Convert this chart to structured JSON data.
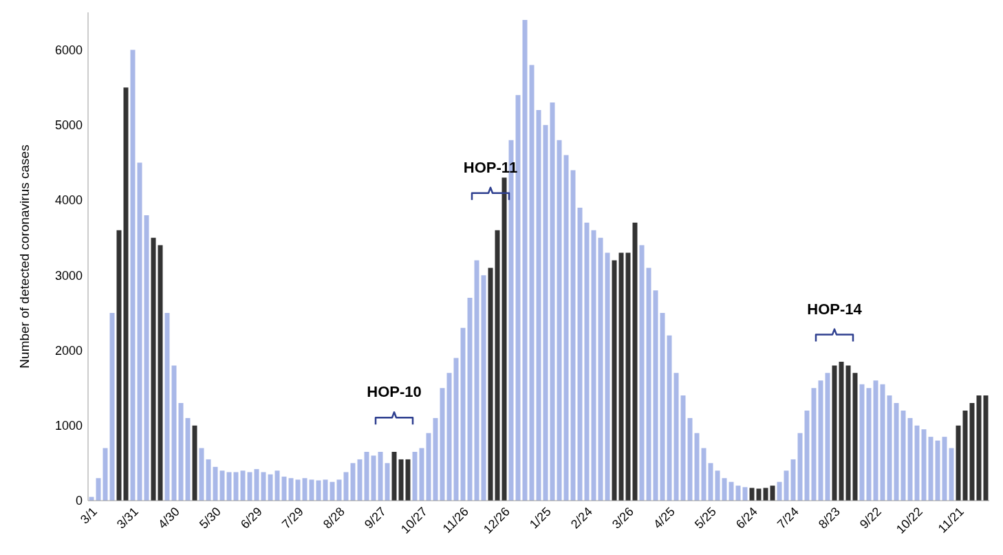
{
  "chart_data": {
    "type": "bar",
    "ylabel": "Number of detected coronavirus cases",
    "categories": [
      "3/1",
      null,
      null,
      null,
      null,
      null,
      "3/31",
      null,
      null,
      null,
      null,
      null,
      "4/30",
      null,
      null,
      null,
      null,
      null,
      "5/30",
      null,
      null,
      null,
      null,
      null,
      "6/29",
      null,
      null,
      null,
      null,
      null,
      "7/29",
      null,
      null,
      null,
      null,
      null,
      "8/28",
      null,
      null,
      null,
      null,
      null,
      "9/27",
      null,
      null,
      null,
      null,
      null,
      "10/27",
      null,
      null,
      null,
      null,
      null,
      "11/26",
      null,
      null,
      null,
      null,
      null,
      "12/26",
      null,
      null,
      null,
      null,
      null,
      "1/25",
      null,
      null,
      null,
      null,
      null,
      "2/24",
      null,
      null,
      null,
      null,
      null,
      "3/26",
      null,
      null,
      null,
      null,
      null,
      "4/25",
      null,
      null,
      null,
      null,
      null,
      "5/25",
      null,
      null,
      null,
      null,
      null,
      "6/24",
      null,
      null,
      null,
      null,
      null,
      "7/24",
      null,
      null,
      null,
      null,
      null,
      "8/23",
      null,
      null,
      null,
      null,
      null,
      "9/22",
      null,
      null,
      null,
      null,
      null,
      "10/22",
      null,
      null,
      null,
      null,
      null,
      "11/21",
      null,
      null,
      null,
      null
    ],
    "values": [
      50,
      300,
      700,
      2500,
      3600,
      5500,
      6000,
      4500,
      3800,
      3500,
      3400,
      2500,
      1800,
      1300,
      1100,
      1000,
      700,
      550,
      450,
      400,
      380,
      380,
      400,
      380,
      420,
      380,
      350,
      400,
      320,
      300,
      280,
      300,
      280,
      270,
      280,
      250,
      280,
      380,
      500,
      550,
      650,
      600,
      650,
      500,
      650,
      550,
      550,
      650,
      700,
      900,
      1100,
      1500,
      1700,
      1900,
      2300,
      2700,
      3200,
      3000,
      3100,
      3600,
      4300,
      4800,
      5400,
      6400,
      5800,
      5200,
      5000,
      5300,
      4800,
      4600,
      4400,
      3900,
      3700,
      3600,
      3500,
      3300,
      3200,
      3300,
      3300,
      3700,
      3400,
      3100,
      2800,
      2500,
      2200,
      1700,
      1400,
      1100,
      900,
      700,
      500,
      400,
      300,
      250,
      200,
      180,
      170,
      160,
      170,
      200,
      250,
      400,
      550,
      900,
      1200,
      1500,
      1600,
      1700,
      1800,
      1850,
      1800,
      1700,
      1550,
      1500,
      1600,
      1550,
      1400,
      1300,
      1200,
      1100,
      1000,
      950,
      850,
      800,
      850,
      700,
      1000,
      1200,
      1300,
      1400,
      1400
    ],
    "colors": [
      "#a9b8e8",
      "#a9b8e8",
      "#a9b8e8",
      "#a9b8e8",
      "#333333",
      "#333333",
      "#a9b8e8",
      "#a9b8e8",
      "#a9b8e8",
      "#333333",
      "#333333",
      "#a9b8e8",
      "#a9b8e8",
      "#a9b8e8",
      "#a9b8e8",
      "#333333",
      "#a9b8e8",
      "#a9b8e8",
      "#a9b8e8",
      "#a9b8e8",
      "#a9b8e8",
      "#a9b8e8",
      "#a9b8e8",
      "#a9b8e8",
      "#a9b8e8",
      "#a9b8e8",
      "#a9b8e8",
      "#a9b8e8",
      "#a9b8e8",
      "#a9b8e8",
      "#a9b8e8",
      "#a9b8e8",
      "#a9b8e8",
      "#a9b8e8",
      "#a9b8e8",
      "#a9b8e8",
      "#a9b8e8",
      "#a9b8e8",
      "#a9b8e8",
      "#a9b8e8",
      "#a9b8e8",
      "#a9b8e8",
      "#a9b8e8",
      "#a9b8e8",
      "#333333",
      "#333333",
      "#333333",
      "#a9b8e8",
      "#a9b8e8",
      "#a9b8e8",
      "#a9b8e8",
      "#a9b8e8",
      "#a9b8e8",
      "#a9b8e8",
      "#a9b8e8",
      "#a9b8e8",
      "#a9b8e8",
      "#a9b8e8",
      "#333333",
      "#333333",
      "#333333",
      "#a9b8e8",
      "#a9b8e8",
      "#a9b8e8",
      "#a9b8e8",
      "#a9b8e8",
      "#a9b8e8",
      "#a9b8e8",
      "#a9b8e8",
      "#a9b8e8",
      "#a9b8e8",
      "#a9b8e8",
      "#a9b8e8",
      "#a9b8e8",
      "#a9b8e8",
      "#a9b8e8",
      "#333333",
      "#333333",
      "#333333",
      "#333333",
      "#a9b8e8",
      "#a9b8e8",
      "#a9b8e8",
      "#a9b8e8",
      "#a9b8e8",
      "#a9b8e8",
      "#a9b8e8",
      "#a9b8e8",
      "#a9b8e8",
      "#a9b8e8",
      "#a9b8e8",
      "#a9b8e8",
      "#a9b8e8",
      "#a9b8e8",
      "#a9b8e8",
      "#a9b8e8",
      "#333333",
      "#333333",
      "#333333",
      "#333333",
      "#a9b8e8",
      "#a9b8e8",
      "#a9b8e8",
      "#a9b8e8",
      "#a9b8e8",
      "#a9b8e8",
      "#a9b8e8",
      "#a9b8e8",
      "#333333",
      "#333333",
      "#333333",
      "#333333",
      "#a9b8e8",
      "#a9b8e8",
      "#a9b8e8",
      "#a9b8e8",
      "#a9b8e8",
      "#a9b8e8",
      "#a9b8e8",
      "#a9b8e8",
      "#a9b8e8",
      "#a9b8e8",
      "#a9b8e8",
      "#a9b8e8",
      "#a9b8e8",
      "#a9b8e8",
      "#333333",
      "#333333",
      "#333333",
      "#333333",
      "#333333"
    ],
    "ylim": [
      0,
      6500
    ],
    "yticks": [
      0,
      1000,
      2000,
      3000,
      4000,
      5000,
      6000
    ],
    "annotations": [
      "HOP-10",
      "HOP-11",
      "HOP-14"
    ]
  }
}
